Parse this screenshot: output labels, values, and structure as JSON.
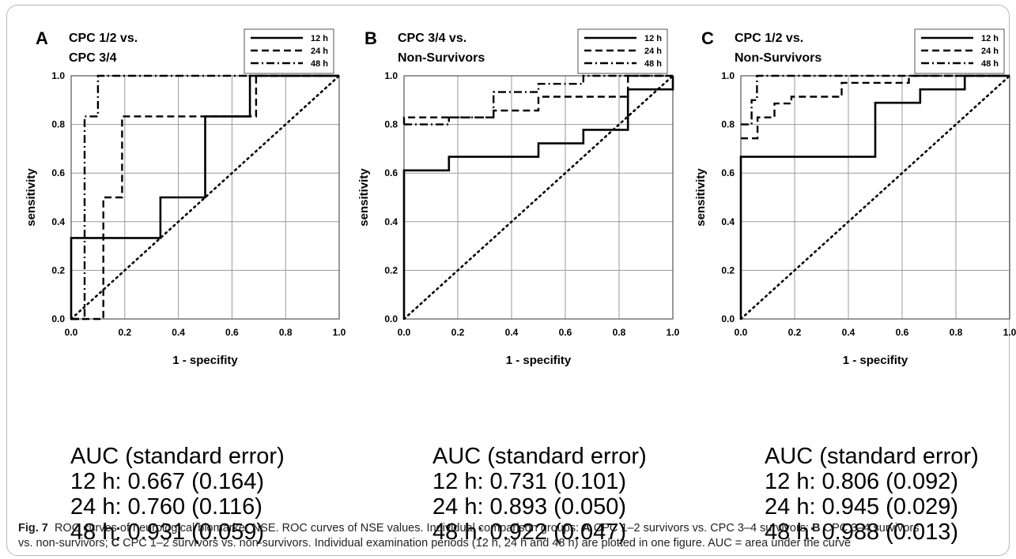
{
  "caption": {
    "label": "Fig. 7",
    "text": "ROC curves of neurological biomarker NSE. ROC curves of NSE values. Individual comparison groups: ",
    "parts": [
      {
        "bold": "A",
        "text": " CPC 1–2 survivors vs. CPC 3–4 survivors; "
      },
      {
        "bold": "B",
        "text": " CPC 3–4 survivors vs. non-survivors; "
      },
      {
        "bold": "C",
        "text": " CPC 1–2 survivors vs. non-survivors. Individual examination periods (12 h, 24 h and 48 h) are plotted in one figure. AUC = area under the curve"
      }
    ]
  },
  "chart_data": [
    {
      "type": "line",
      "panel_letter": "A",
      "title": [
        "CPC 1/2 vs.",
        "CPC 3/4"
      ],
      "xlabel": "1 - specifity",
      "ylabel": "sensitivity",
      "xlim": [
        0,
        1
      ],
      "ylim": [
        0,
        1
      ],
      "x_ticks": [
        "0.0",
        "0.2",
        "0.4",
        "0.6",
        "0.8",
        "1.0"
      ],
      "y_ticks": [
        "0.0",
        "0.2",
        "0.4",
        "0.6",
        "0.8",
        "1.0"
      ],
      "grid": true,
      "legend_position": "top-right",
      "series": [
        {
          "name": "12 h",
          "style": "solid",
          "points": [
            [
              0,
              0
            ],
            [
              0,
              0.333
            ],
            [
              0.333,
              0.333
            ],
            [
              0.333,
              0.5
            ],
            [
              0.5,
              0.5
            ],
            [
              0.5,
              0.833
            ],
            [
              0.667,
              0.833
            ],
            [
              0.667,
              1
            ],
            [
              1,
              1
            ]
          ]
        },
        {
          "name": "24 h",
          "style": "dashed",
          "points": [
            [
              0,
              0
            ],
            [
              0.12,
              0
            ],
            [
              0.12,
              0.5
            ],
            [
              0.19,
              0.5
            ],
            [
              0.19,
              0.833
            ],
            [
              0.69,
              0.833
            ],
            [
              0.69,
              1
            ],
            [
              1,
              1
            ]
          ]
        },
        {
          "name": "48 h",
          "style": "dashdot",
          "points": [
            [
              0,
              0
            ],
            [
              0.05,
              0
            ],
            [
              0.05,
              0.833
            ],
            [
              0.1,
              0.833
            ],
            [
              0.1,
              1
            ],
            [
              1,
              1
            ]
          ]
        },
        {
          "name": "",
          "style": "dotted",
          "points": [
            [
              0,
              0
            ],
            [
              1,
              1
            ]
          ]
        }
      ],
      "auc": {
        "header": "AUC (standard error)",
        "lines": [
          "12 h: 0.667 (0.164)",
          "24 h: 0.760 (0.116)",
          "48 h: 0.931 (0.059)"
        ]
      }
    },
    {
      "type": "line",
      "panel_letter": "B",
      "title": [
        "CPC 3/4 vs.",
        "Non-Survivors"
      ],
      "xlabel": "1 - specifity",
      "ylabel": "sensitivity",
      "xlim": [
        0,
        1
      ],
      "ylim": [
        0,
        1
      ],
      "x_ticks": [
        "0.0",
        "0.2",
        "0.4",
        "0.6",
        "0.8",
        "1.0"
      ],
      "y_ticks": [
        "0.0",
        "0.2",
        "0.4",
        "0.6",
        "0.8",
        "1.0"
      ],
      "grid": true,
      "legend_position": "top-right",
      "series": [
        {
          "name": "12 h",
          "style": "solid",
          "points": [
            [
              0,
              0
            ],
            [
              0,
              0.611
            ],
            [
              0.167,
              0.611
            ],
            [
              0.167,
              0.667
            ],
            [
              0.5,
              0.667
            ],
            [
              0.5,
              0.722
            ],
            [
              0.667,
              0.722
            ],
            [
              0.667,
              0.778
            ],
            [
              0.833,
              0.778
            ],
            [
              0.833,
              0.944
            ],
            [
              1,
              0.944
            ],
            [
              1,
              1
            ]
          ]
        },
        {
          "name": "24 h",
          "style": "dashed",
          "points": [
            [
              0,
              0.8
            ],
            [
              0,
              0.829
            ],
            [
              0.167,
              0.829
            ],
            [
              0.167,
              0.829
            ],
            [
              0.333,
              0.829
            ],
            [
              0.333,
              0.857
            ],
            [
              0.5,
              0.857
            ],
            [
              0.5,
              0.914
            ],
            [
              0.833,
              0.914
            ],
            [
              0.833,
              1
            ],
            [
              1,
              1
            ]
          ]
        },
        {
          "name": "48 h",
          "style": "dashdot",
          "points": [
            [
              0,
              0.8
            ],
            [
              0.167,
              0.8
            ],
            [
              0.167,
              0.829
            ],
            [
              0.333,
              0.829
            ],
            [
              0.333,
              0.933
            ],
            [
              0.5,
              0.933
            ],
            [
              0.5,
              0.967
            ],
            [
              0.667,
              0.967
            ],
            [
              0.667,
              1
            ],
            [
              1,
              1
            ]
          ]
        },
        {
          "name": "",
          "style": "dotted",
          "points": [
            [
              0,
              0
            ],
            [
              1,
              1
            ]
          ]
        }
      ],
      "auc": {
        "header": "AUC (standard error)",
        "lines": [
          "12 h: 0.731 (0.101)",
          "24 h: 0.893 (0.050)",
          "48 h: 0.922 (0.047)"
        ]
      }
    },
    {
      "type": "line",
      "panel_letter": "C",
      "title": [
        "CPC 1/2 vs.",
        "Non-Survivors"
      ],
      "xlabel": "1 - specifity",
      "ylabel": "sensitivity",
      "xlim": [
        0,
        1
      ],
      "ylim": [
        0,
        1
      ],
      "x_ticks": [
        "0.0",
        "0.2",
        "0.4",
        "0.6",
        "0.8",
        "1.0"
      ],
      "y_ticks": [
        "0.0",
        "0.2",
        "0.4",
        "0.6",
        "0.8",
        "1.0"
      ],
      "grid": true,
      "legend_position": "top-right",
      "series": [
        {
          "name": "12 h",
          "style": "solid",
          "points": [
            [
              0,
              0
            ],
            [
              0,
              0.667
            ],
            [
              0.5,
              0.667
            ],
            [
              0.5,
              0.889
            ],
            [
              0.667,
              0.889
            ],
            [
              0.667,
              0.944
            ],
            [
              0.833,
              0.944
            ],
            [
              0.833,
              1
            ],
            [
              1,
              1
            ]
          ]
        },
        {
          "name": "24 h",
          "style": "dashed",
          "points": [
            [
              0,
              0.743
            ],
            [
              0.062,
              0.743
            ],
            [
              0.062,
              0.829
            ],
            [
              0.125,
              0.829
            ],
            [
              0.125,
              0.886
            ],
            [
              0.188,
              0.886
            ],
            [
              0.188,
              0.914
            ],
            [
              0.375,
              0.914
            ],
            [
              0.375,
              0.971
            ],
            [
              0.625,
              0.971
            ],
            [
              0.625,
              1
            ],
            [
              1,
              1
            ]
          ]
        },
        {
          "name": "48 h",
          "style": "dashdot",
          "points": [
            [
              0,
              0.8
            ],
            [
              0.04,
              0.8
            ],
            [
              0.04,
              0.9
            ],
            [
              0.06,
              0.9
            ],
            [
              0.06,
              1
            ],
            [
              1,
              1
            ]
          ]
        },
        {
          "name": "",
          "style": "dotted",
          "points": [
            [
              0,
              0
            ],
            [
              1,
              1
            ]
          ]
        }
      ],
      "auc": {
        "header": "AUC (standard error)",
        "lines": [
          "12 h: 0.806 (0.092)",
          "24 h: 0.945 (0.029)",
          "48 h: 0.988 (0.013)"
        ]
      }
    }
  ]
}
